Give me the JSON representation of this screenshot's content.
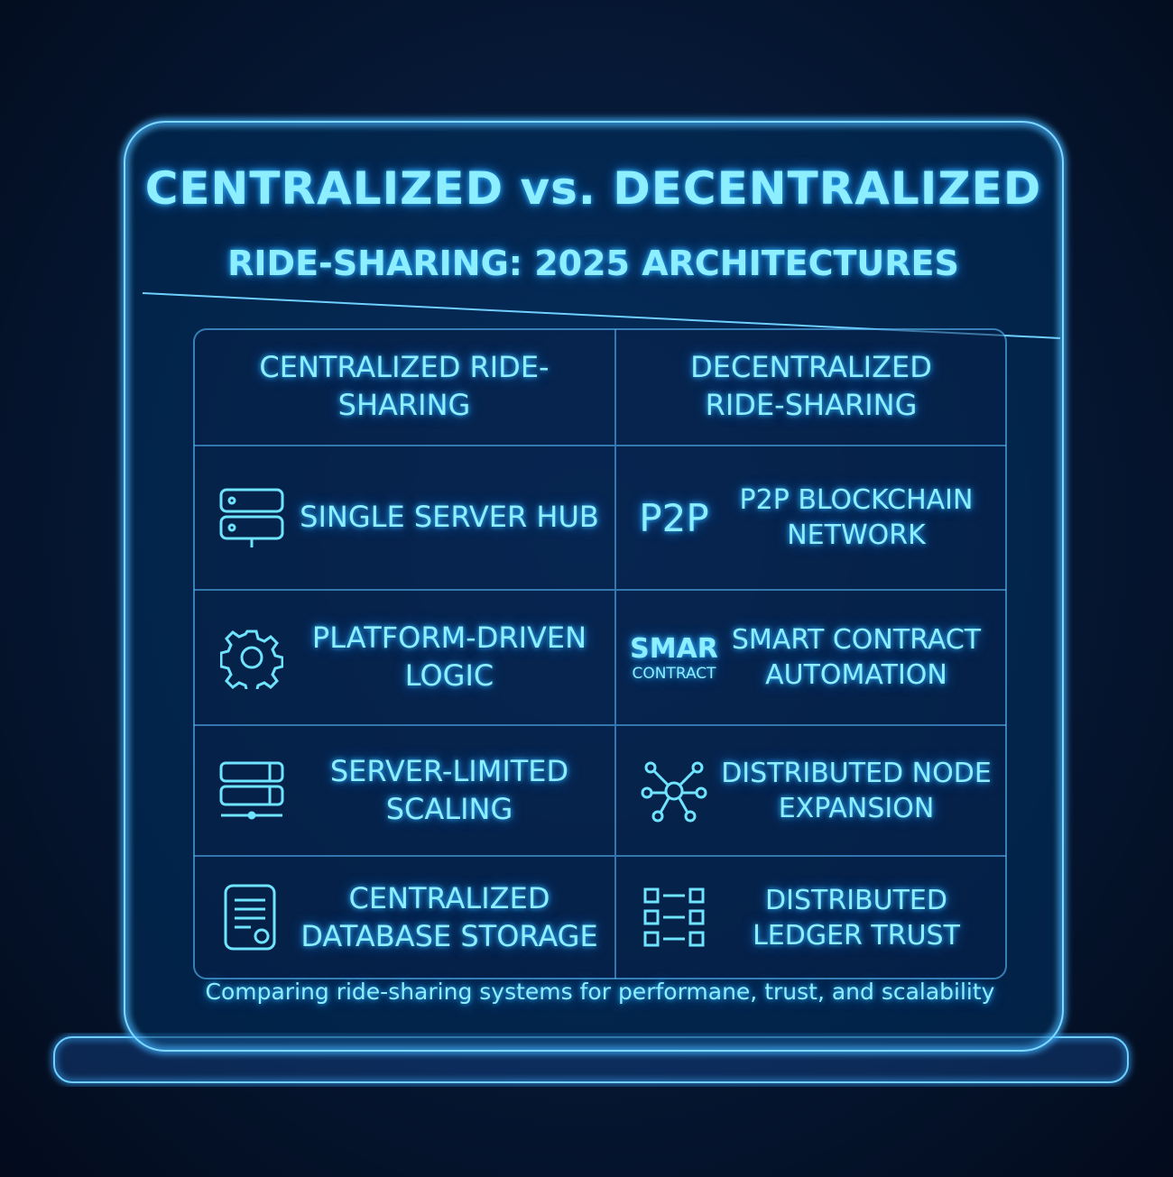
{
  "header": {
    "title": "CENTRALIZED vs. DECENTRALIZED",
    "subtitle": "RIDE-SHARING: 2025 ARCHITECTURES"
  },
  "table": {
    "columns": [
      "CENTRALIZED RIDE-SHARING",
      "DECENTRALIZED RIDE-SHARING"
    ],
    "rows": [
      {
        "left": "SINGLE SERVER HUB",
        "right_icon": [
          "P2P"
        ],
        "right": "P2P BLOCKCHAIN NETWORK"
      },
      {
        "left": "PLATFORM-DRIVEN LOGIC",
        "right_icon": [
          "SMAR",
          "CONTRACT"
        ],
        "right": "SMART CONTRACT AUTOMATION"
      },
      {
        "left": "SERVER-LIMITED SCALING",
        "right": "DISTRIBUTED NODE EXPANSION"
      },
      {
        "left": "CENTRALIZED DATABASE STORAGE",
        "right": "DISTRIBUTED LEDGER TRUST"
      }
    ]
  },
  "footer": "Comparing ride-sharing systems for performane, trust, and scalability"
}
